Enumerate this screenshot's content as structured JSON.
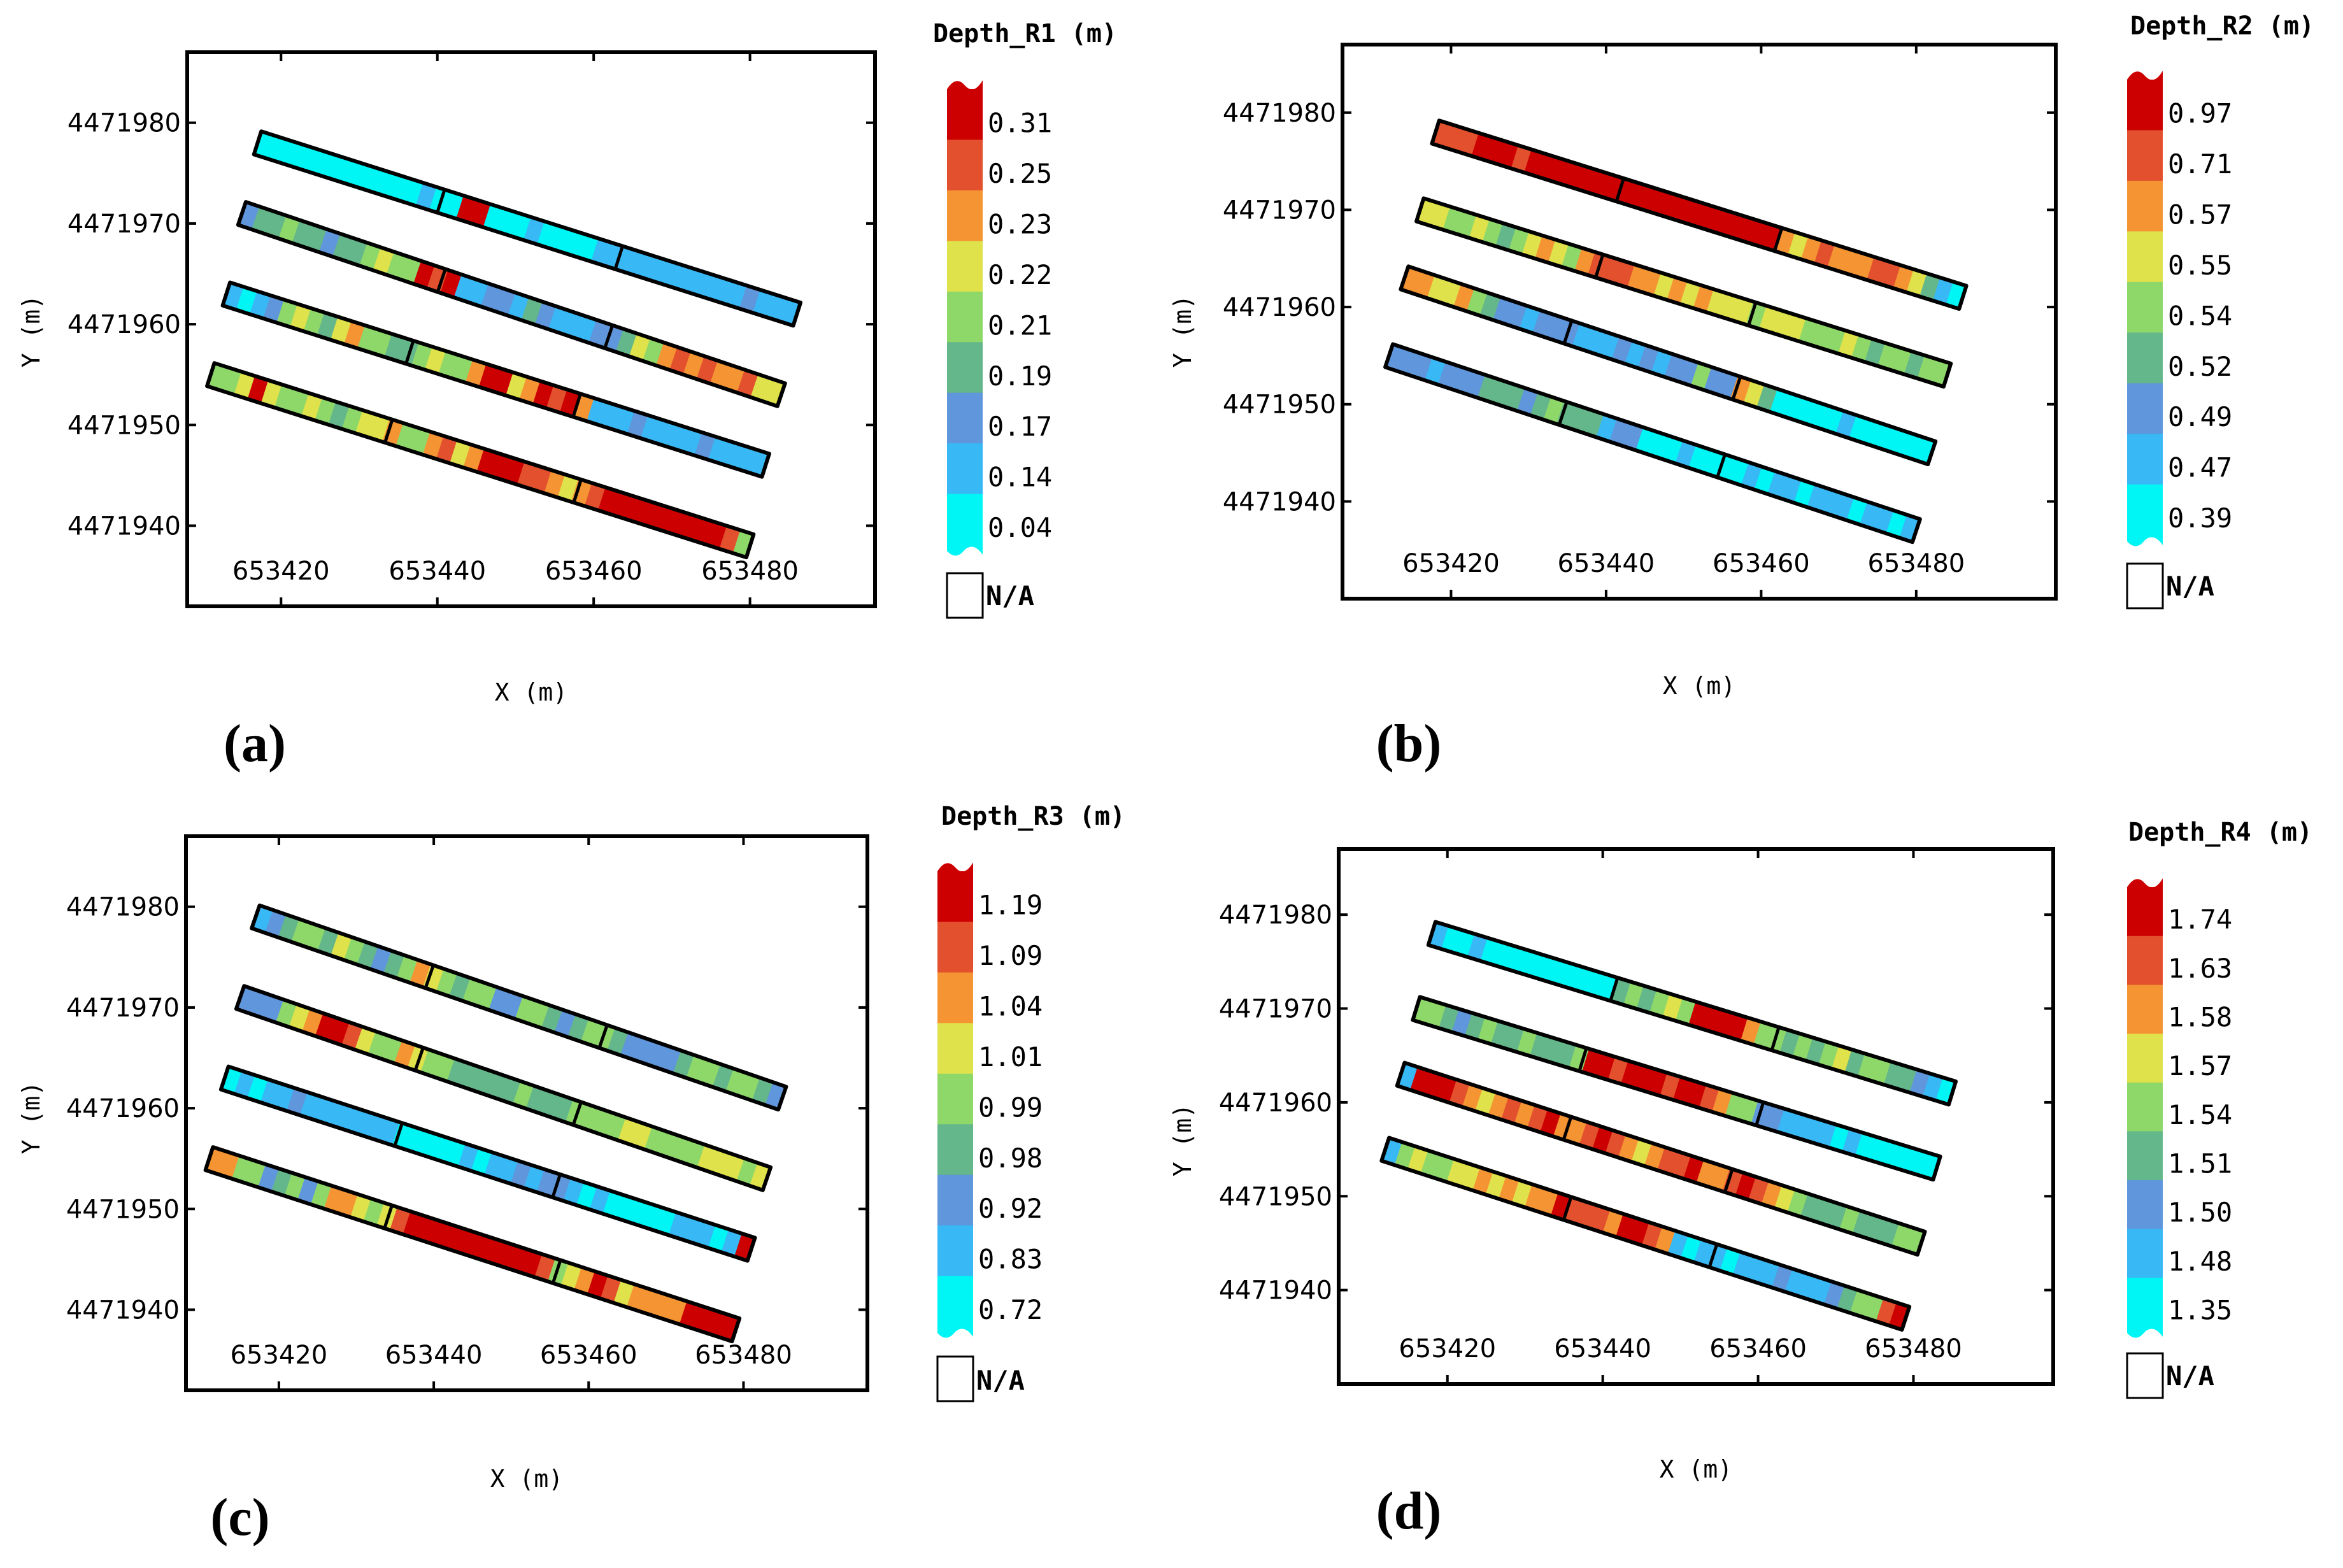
{
  "figure": {
    "xlabel": "X (m)",
    "ylabel": "Y (m)",
    "na_label": "N/A"
  },
  "chart_data": [
    {
      "type": "heatmap",
      "panel_label": "(a)",
      "colorbar_title": "Depth_R1  (m)",
      "colorbar_ticks": [
        "0.31",
        "0.25",
        "0.23",
        "0.22",
        "0.21",
        "0.19",
        "0.17",
        "0.14",
        "0.04"
      ],
      "x_ticks": [
        653420,
        653440,
        653460,
        653480
      ],
      "y_ticks": [
        4471980,
        4471970,
        4471960,
        4471950,
        4471940
      ],
      "xlim": [
        653408,
        653496
      ],
      "ylim": [
        4471932,
        4471987
      ],
      "strips": [
        {
          "x0": 653417,
          "y0": 4471978,
          "x1": 653486,
          "y1": 4471961,
          "cuts": [
            0.34,
            0.67
          ],
          "pattern": [
            0,
            0,
            0,
            0,
            0,
            0,
            0,
            0,
            0,
            0,
            0,
            0,
            1,
            0,
            0,
            8,
            8,
            0,
            0,
            0,
            1,
            0,
            0,
            0,
            0,
            1,
            1,
            1,
            1,
            1,
            1,
            1,
            1,
            1,
            1,
            1,
            2,
            1,
            1,
            1
          ]
        },
        {
          "x0": 653415,
          "y0": 4471971,
          "x1": 653484,
          "y1": 4471953,
          "cuts": [
            0.37,
            0.68
          ],
          "pattern": [
            2,
            3,
            3,
            4,
            3,
            3,
            2,
            3,
            3,
            4,
            5,
            4,
            4,
            8,
            7,
            8,
            1,
            1,
            2,
            2,
            1,
            3,
            2,
            1,
            1,
            1,
            2,
            2,
            3,
            5,
            4,
            6,
            7,
            6,
            7,
            6,
            6,
            7,
            5,
            5
          ]
        },
        {
          "x0": 653413,
          "y0": 4471963,
          "x1": 653482,
          "y1": 4471946,
          "cuts": [
            0.34,
            0.65
          ],
          "pattern": [
            1,
            0,
            1,
            2,
            4,
            5,
            4,
            3,
            5,
            6,
            4,
            4,
            3,
            3,
            4,
            5,
            4,
            4,
            6,
            8,
            8,
            5,
            6,
            8,
            7,
            8,
            6,
            1,
            1,
            1,
            2,
            1,
            1,
            1,
            1,
            2,
            1,
            1,
            1,
            1
          ]
        },
        {
          "x0": 653411,
          "y0": 4471955,
          "x1": 653480,
          "y1": 4471938,
          "cuts": [
            0.33,
            0.68
          ],
          "pattern": [
            4,
            4,
            5,
            8,
            5,
            4,
            4,
            5,
            4,
            3,
            4,
            5,
            5,
            6,
            4,
            4,
            6,
            7,
            5,
            6,
            8,
            8,
            8,
            7,
            7,
            6,
            5,
            6,
            7,
            8,
            8,
            8,
            8,
            8,
            8,
            8,
            8,
            8,
            7,
            4
          ]
        }
      ]
    },
    {
      "type": "heatmap",
      "panel_label": "(b)",
      "colorbar_title": "Depth_R2  (m)",
      "colorbar_ticks": [
        "0.97",
        "0.71",
        "0.57",
        "0.55",
        "0.54",
        "0.52",
        "0.49",
        "0.47",
        "0.39"
      ],
      "x_ticks": [
        653420,
        653440,
        653460,
        653480
      ],
      "y_ticks": [
        4471980,
        4471970,
        4471960,
        4471950,
        4471940
      ],
      "xlim": [
        653406,
        653498
      ],
      "ylim": [
        4471930,
        4471987
      ],
      "strips": [
        {
          "x0": 653418,
          "y0": 4471978,
          "x1": 653486,
          "y1": 4471961,
          "cuts": [
            0.35,
            0.65
          ],
          "pattern": [
            7,
            7,
            7,
            8,
            8,
            8,
            7,
            8,
            8,
            8,
            8,
            8,
            8,
            8,
            8,
            8,
            8,
            8,
            8,
            8,
            8,
            8,
            8,
            8,
            8,
            8,
            6,
            5,
            6,
            7,
            6,
            6,
            6,
            7,
            7,
            6,
            5,
            3,
            1,
            0
          ]
        },
        {
          "x0": 653416,
          "y0": 4471970,
          "x1": 653484,
          "y1": 4471953,
          "cuts": [
            0.34,
            0.63
          ],
          "pattern": [
            5,
            5,
            4,
            4,
            5,
            4,
            3,
            4,
            5,
            6,
            5,
            4,
            6,
            7,
            7,
            7,
            6,
            6,
            5,
            6,
            5,
            6,
            5,
            5,
            5,
            4,
            5,
            5,
            5,
            4,
            4,
            4,
            5,
            4,
            3,
            4,
            4,
            3,
            4,
            4
          ]
        },
        {
          "x0": 653414,
          "y0": 4471963,
          "x1": 653482,
          "y1": 4471945,
          "cuts": [
            0.31,
            0.63
          ],
          "pattern": [
            6,
            6,
            5,
            5,
            6,
            4,
            3,
            2,
            2,
            1,
            2,
            2,
            2,
            1,
            1,
            1,
            2,
            1,
            2,
            1,
            2,
            2,
            4,
            2,
            2,
            6,
            5,
            3,
            0,
            0,
            0,
            0,
            0,
            1,
            0,
            0,
            0,
            0,
            0,
            0
          ]
        },
        {
          "x0": 653412,
          "y0": 4471955,
          "x1": 653480,
          "y1": 4471937,
          "cuts": [
            0.33,
            0.63
          ],
          "pattern": [
            2,
            2,
            2,
            1,
            2,
            2,
            2,
            3,
            3,
            3,
            2,
            3,
            4,
            3,
            3,
            3,
            1,
            2,
            2,
            0,
            0,
            0,
            1,
            0,
            0,
            0,
            0,
            1,
            0,
            1,
            1,
            0,
            1,
            1,
            1,
            0,
            1,
            1,
            0,
            1
          ]
        }
      ]
    },
    {
      "type": "heatmap",
      "panel_label": "(c)",
      "colorbar_title": "Depth_R3  (m)",
      "colorbar_ticks": [
        "1.19",
        "1.09",
        "1.04",
        "1.01",
        "0.99",
        "0.98",
        "0.92",
        "0.83",
        "0.72"
      ],
      "x_ticks": [
        653420,
        653440,
        653460,
        653480
      ],
      "y_ticks": [
        4471980,
        4471970,
        4471960,
        4471950,
        4471940
      ],
      "xlim": [
        653408,
        653496
      ],
      "ylim": [
        4471932,
        4471987
      ],
      "strips": [
        {
          "x0": 653417,
          "y0": 4471979,
          "x1": 653485,
          "y1": 4471961,
          "cuts": [
            0.33,
            0.66
          ],
          "pattern": [
            1,
            2,
            3,
            4,
            4,
            3,
            5,
            4,
            3,
            2,
            3,
            4,
            6,
            5,
            4,
            3,
            4,
            4,
            2,
            2,
            4,
            4,
            3,
            2,
            3,
            4,
            4,
            3,
            2,
            2,
            2,
            2,
            3,
            4,
            4,
            3,
            4,
            4,
            3,
            2
          ]
        },
        {
          "x0": 653415,
          "y0": 4471971,
          "x1": 653483,
          "y1": 4471953,
          "cuts": [
            0.34,
            0.64
          ],
          "pattern": [
            2,
            2,
            2,
            4,
            5,
            6,
            8,
            8,
            7,
            5,
            4,
            4,
            6,
            5,
            4,
            4,
            3,
            3,
            3,
            3,
            3,
            4,
            3,
            3,
            3,
            4,
            4,
            4,
            4,
            5,
            5,
            4,
            4,
            4,
            4,
            5,
            5,
            5,
            4,
            5
          ]
        },
        {
          "x0": 653413,
          "y0": 4471963,
          "x1": 653481,
          "y1": 4471946,
          "cuts": [
            0.33,
            0.63
          ],
          "pattern": [
            0,
            1,
            0,
            1,
            1,
            2,
            1,
            1,
            1,
            1,
            1,
            1,
            1,
            0,
            0,
            0,
            0,
            0,
            1,
            0,
            1,
            1,
            2,
            1,
            2,
            2,
            1,
            0,
            1,
            0,
            0,
            0,
            0,
            0,
            1,
            1,
            1,
            0,
            1,
            8
          ]
        },
        {
          "x0": 653411,
          "y0": 4471955,
          "x1": 653479,
          "y1": 4471938,
          "cuts": [
            0.34,
            0.66
          ],
          "pattern": [
            6,
            6,
            4,
            4,
            2,
            3,
            4,
            2,
            4,
            6,
            6,
            5,
            4,
            5,
            7,
            8,
            8,
            8,
            8,
            8,
            8,
            8,
            8,
            8,
            8,
            7,
            4,
            5,
            6,
            8,
            7,
            5,
            6,
            6,
            6,
            6,
            8,
            8,
            8,
            8
          ]
        }
      ]
    },
    {
      "type": "heatmap",
      "panel_label": "(d)",
      "colorbar_title": "Depth_R4  (m)",
      "colorbar_ticks": [
        "1.74",
        "1.63",
        "1.58",
        "1.57",
        "1.54",
        "1.51",
        "1.50",
        "1.48",
        "1.35"
      ],
      "x_ticks": [
        653420,
        653440,
        653460,
        653480
      ],
      "y_ticks": [
        4471980,
        4471970,
        4471960,
        4471950,
        4471940
      ],
      "xlim": [
        653406,
        653498
      ],
      "ylim": [
        4471930,
        4471987
      ],
      "strips": [
        {
          "x0": 653418,
          "y0": 4471978,
          "x1": 653485,
          "y1": 4471961,
          "cuts": [
            0.35,
            0.66
          ],
          "pattern": [
            1,
            0,
            0,
            1,
            0,
            0,
            0,
            0,
            0,
            0,
            0,
            0,
            0,
            0,
            3,
            4,
            3,
            4,
            5,
            4,
            8,
            8,
            8,
            8,
            6,
            4,
            4,
            3,
            4,
            3,
            4,
            5,
            3,
            4,
            4,
            3,
            3,
            2,
            1,
            0
          ]
        },
        {
          "x0": 653416,
          "y0": 4471970,
          "x1": 653483,
          "y1": 4471953,
          "cuts": [
            0.32,
            0.66
          ],
          "pattern": [
            4,
            4,
            3,
            2,
            3,
            4,
            3,
            3,
            4,
            3,
            3,
            3,
            4,
            8,
            8,
            7,
            8,
            8,
            8,
            7,
            8,
            8,
            7,
            6,
            4,
            4,
            2,
            2,
            1,
            1,
            1,
            1,
            0,
            1,
            0,
            0,
            0,
            0,
            0,
            0
          ]
        },
        {
          "x0": 653414,
          "y0": 4471963,
          "x1": 653481,
          "y1": 4471945,
          "cuts": [
            0.32,
            0.63
          ],
          "pattern": [
            1,
            8,
            8,
            8,
            7,
            6,
            5,
            6,
            7,
            6,
            7,
            8,
            6,
            6,
            7,
            8,
            7,
            6,
            5,
            6,
            7,
            7,
            8,
            6,
            6,
            7,
            8,
            7,
            6,
            5,
            4,
            3,
            3,
            3,
            4,
            3,
            3,
            3,
            4,
            4
          ]
        },
        {
          "x0": 653412,
          "y0": 4471955,
          "x1": 653479,
          "y1": 4471937,
          "cuts": [
            0.35,
            0.63
          ],
          "pattern": [
            1,
            4,
            5,
            4,
            4,
            5,
            5,
            6,
            5,
            6,
            5,
            6,
            6,
            8,
            7,
            7,
            7,
            6,
            8,
            8,
            7,
            6,
            1,
            0,
            1,
            1,
            0,
            1,
            1,
            1,
            2,
            1,
            1,
            1,
            2,
            3,
            4,
            4,
            7,
            8
          ]
        }
      ]
    }
  ],
  "colors": {
    "scale": [
      "#00f5f5",
      "#38b8f5",
      "#5f96dc",
      "#64b68b",
      "#8ed86a",
      "#dfe24a",
      "#f59433",
      "#e3502d",
      "#cc0000"
    ],
    "frame": "#000000",
    "cb_label_bg": "#ffffff"
  }
}
